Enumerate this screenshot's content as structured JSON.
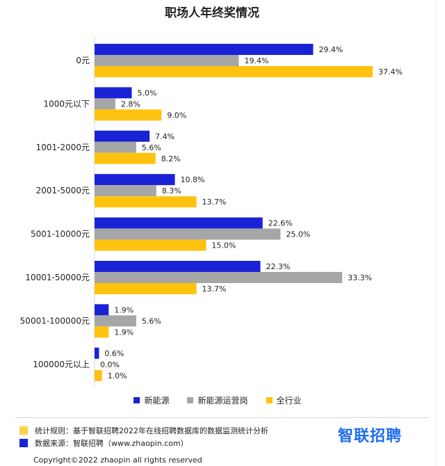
{
  "chart_data": {
    "type": "bar",
    "orientation": "horizontal",
    "title": "职场人年终奖情况",
    "categories": [
      "0元",
      "1000元以下",
      "1001-2000元",
      "2001-5000元",
      "5001-10000元",
      "10001-50000元",
      "50001-100000元",
      "100000元以上"
    ],
    "series": [
      {
        "name": "新能源",
        "color": "#1a22d6",
        "values": [
          29.4,
          5.0,
          7.4,
          10.8,
          22.6,
          22.3,
          1.9,
          0.6
        ]
      },
      {
        "name": "新能源运营岗",
        "color": "#a6a6a6",
        "values": [
          19.4,
          2.8,
          5.6,
          8.3,
          25.0,
          33.3,
          5.6,
          0.0
        ]
      },
      {
        "name": "全行业",
        "color": "#ffc20e",
        "values": [
          37.4,
          9.0,
          8.2,
          13.7,
          15.0,
          13.7,
          1.9,
          1.0
        ]
      }
    ],
    "value_suffix": "%",
    "xlim": [
      0,
      37.4
    ],
    "grid": false,
    "legend_position": "bottom"
  },
  "notes": [
    {
      "color": "#ffd24a",
      "text": "统计规则：基于智联招聘2022年在线招聘数据库的数据监测统计分析"
    },
    {
      "color": "#1a22d6",
      "text": "数据来源：智联招聘（www.zhaopin.com）"
    }
  ],
  "brand": "智联招聘",
  "copyright": "Copyright©2022 zhaopin all rights reserved"
}
